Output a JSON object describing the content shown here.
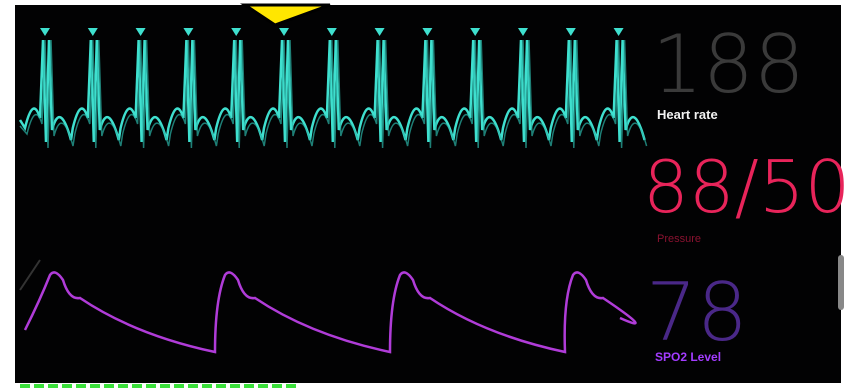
{
  "vitals": [
    {
      "value": "188",
      "label": "Heart rate"
    },
    {
      "value": "88/50",
      "label": "Pressure"
    },
    {
      "value": "78",
      "label": "SPO2 Level"
    }
  ]
}
